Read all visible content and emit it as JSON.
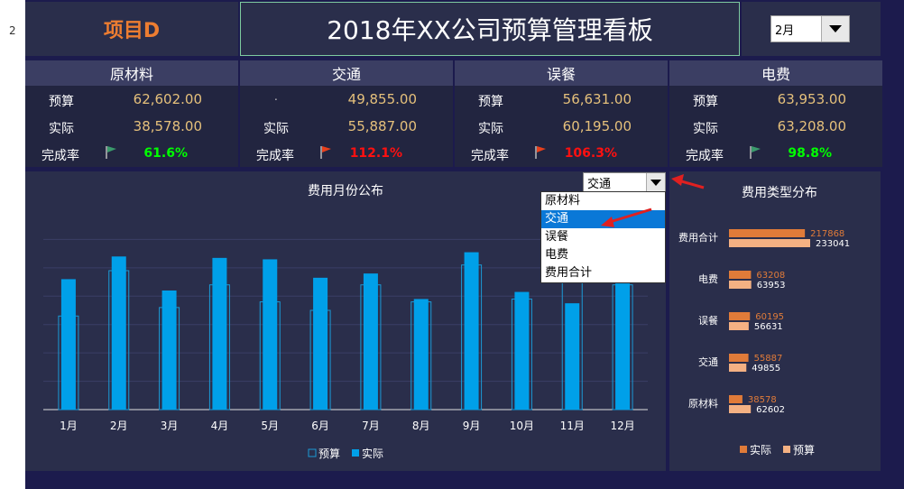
{
  "sheet": {
    "row_number": "2"
  },
  "header": {
    "project": "项目D",
    "title": "2018年XX公司预算管理看板",
    "month_value": "2月"
  },
  "cards": [
    {
      "title": "原材料",
      "budget_label": "预算",
      "budget": "62,602.00",
      "actual_label": "实际",
      "actual": "38,578.00",
      "rate_label": "完成率",
      "rate": "61.6%",
      "rate_color": "#00ff00",
      "flag_color": "#3a9a6c"
    },
    {
      "title": "交通",
      "budget_label": ".",
      "budget": "49,855.00",
      "actual_label": "实际",
      "actual": "55,887.00",
      "rate_label": "完成率",
      "rate": "112.1%",
      "rate_color": "#ff1010",
      "flag_color": "#e8401c"
    },
    {
      "title": "误餐",
      "budget_label": "预算",
      "budget": "56,631.00",
      "actual_label": "实际",
      "actual": "60,195.00",
      "rate_label": "完成率",
      "rate": "106.3%",
      "rate_color": "#ff1010",
      "flag_color": "#e8401c"
    },
    {
      "title": "电费",
      "budget_label": "预算",
      "budget": "63,953.00",
      "actual_label": "实际",
      "actual": "63,208.00",
      "rate_label": "完成率",
      "rate": "98.8%",
      "rate_color": "#00ff00",
      "flag_color": "#3a9a6c"
    }
  ],
  "dropdown": {
    "selected": "交通",
    "options": [
      "原材料",
      "交通",
      "误餐",
      "电费",
      "费用合计"
    ],
    "highlighted_index": 1
  },
  "chart_data": [
    {
      "type": "bar",
      "title": "费用月份公布",
      "categories": [
        "1月",
        "2月",
        "3月",
        "4月",
        "5月",
        "6月",
        "7月",
        "8月",
        "9月",
        "10月",
        "11月",
        "12月"
      ],
      "series": [
        {
          "name": "预算",
          "values": [
            3300,
            4900,
            3600,
            4400,
            3800,
            3500,
            4400,
            3800,
            5100,
            3900,
            4600,
            4400
          ],
          "color": "#1b9ad6"
        },
        {
          "name": "实际",
          "values": [
            4600,
            5400,
            4200,
            5350,
            5300,
            4650,
            4800,
            3900,
            5550,
            4150,
            3750,
            4450
          ],
          "color": "#00a0e9"
        }
      ],
      "ylim": [
        0,
        7000
      ],
      "grid": true,
      "legend": "bottom"
    },
    {
      "type": "bar",
      "orientation": "horizontal",
      "title": "费用类型分布",
      "categories": [
        "费用合计",
        "电费",
        "误餐",
        "交通",
        "原材料"
      ],
      "series": [
        {
          "name": "实际",
          "values": [
            217868,
            63208,
            60195,
            55887,
            38578
          ],
          "color": "#e07b39"
        },
        {
          "name": "预算",
          "values": [
            233041,
            63953,
            56631,
            49855,
            62602
          ],
          "color": "#f4b183"
        }
      ],
      "legend": "bottom"
    }
  ]
}
